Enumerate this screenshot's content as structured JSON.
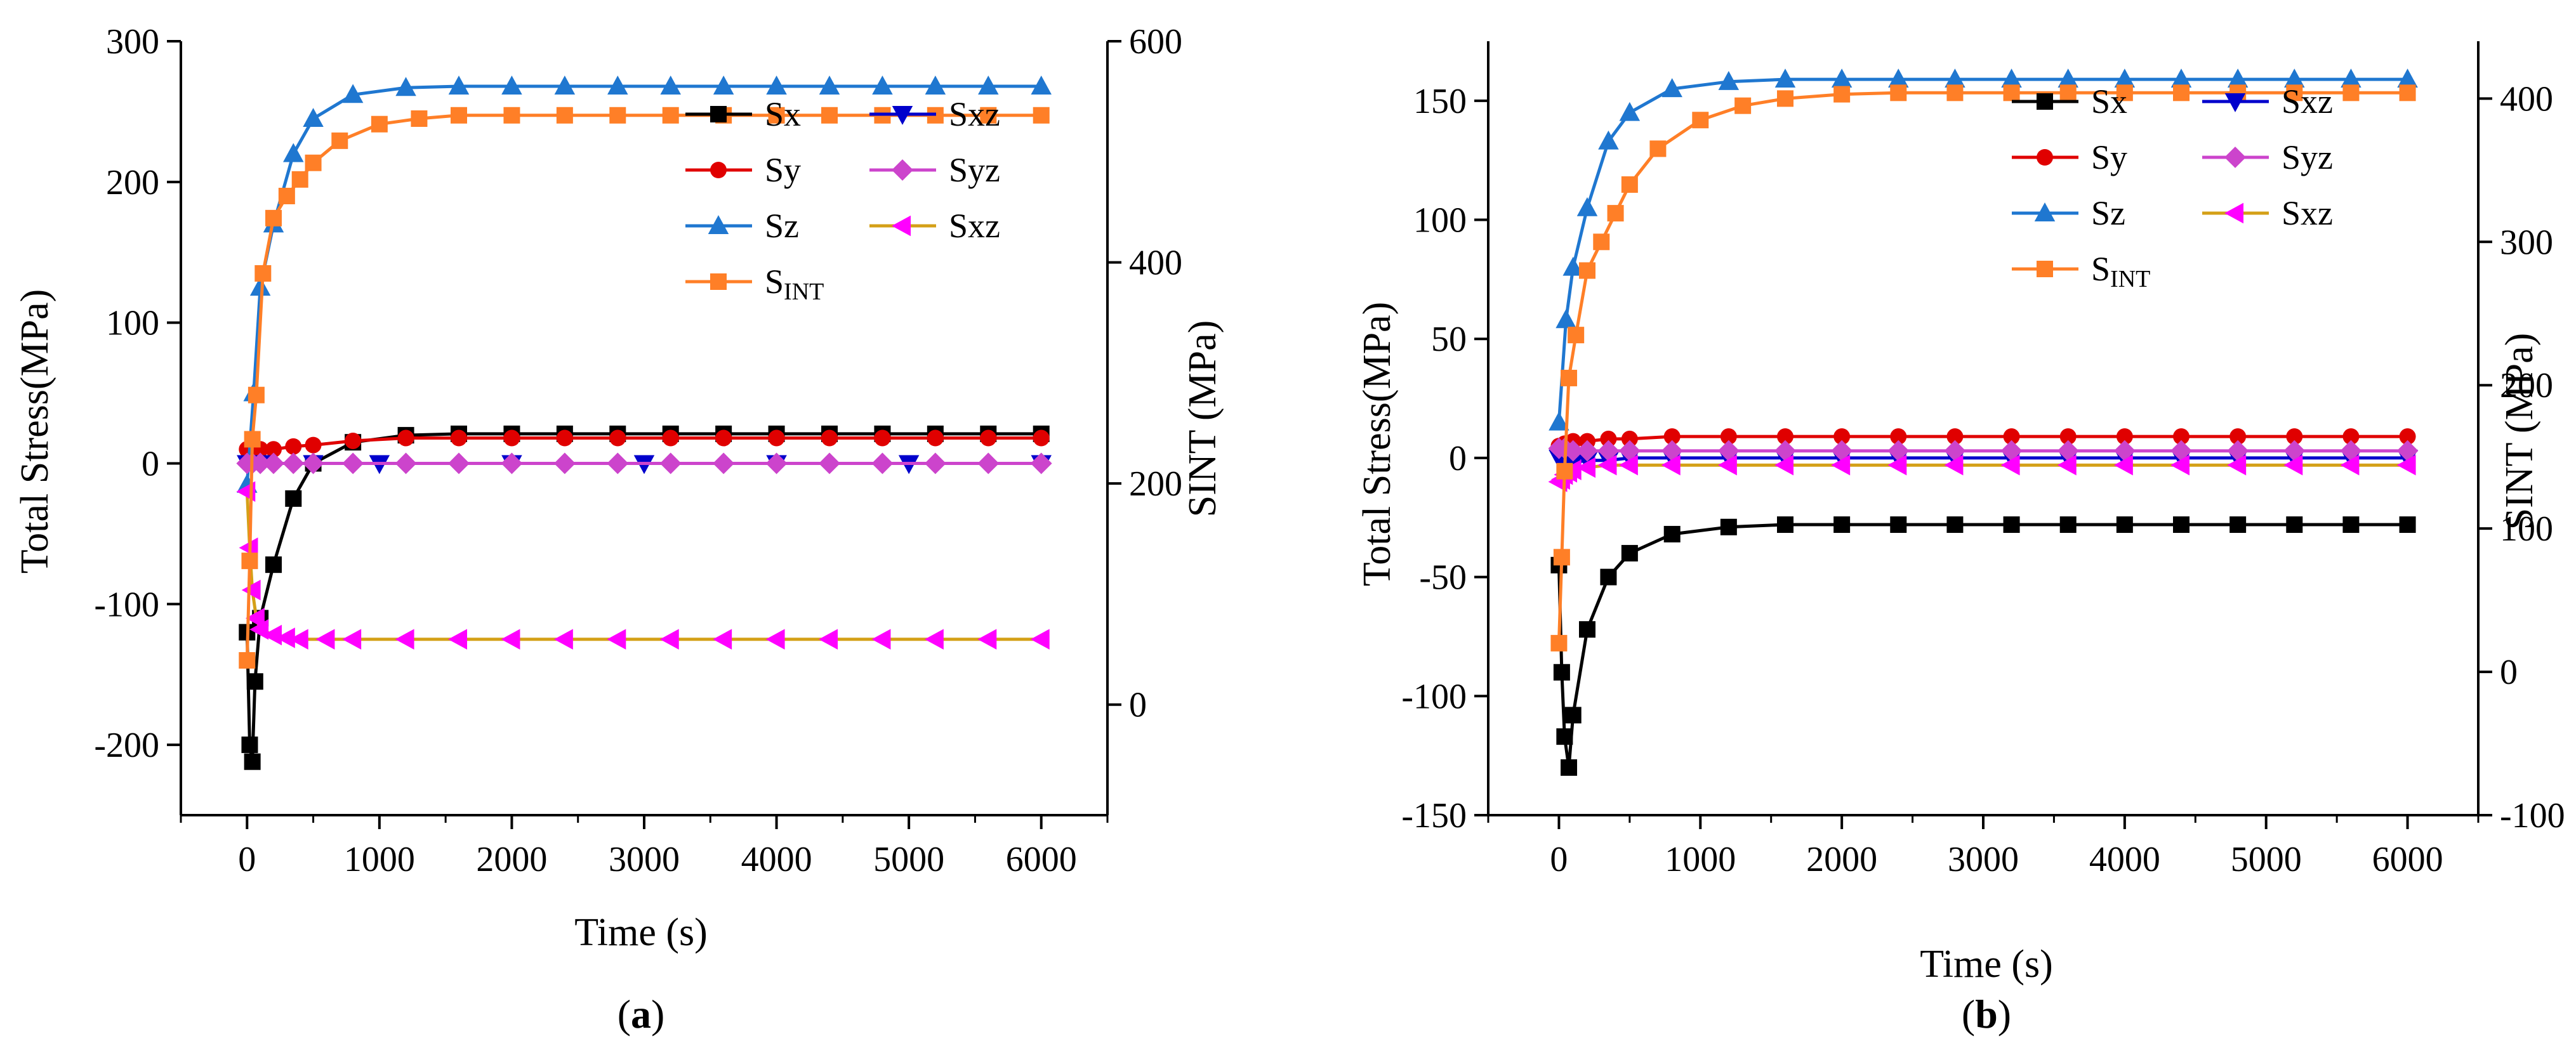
{
  "chart_data": [
    {
      "type": "line",
      "panel_label": "a",
      "xlabel": "Time (s)",
      "ylabel": "Total Stress(MPa)",
      "ylabel_right": "SINT (MPa)",
      "xlim": [
        -500,
        6500
      ],
      "ylim": [
        -250,
        300
      ],
      "ylim_right": [
        -100,
        600
      ],
      "xticks": [
        0,
        1000,
        2000,
        3000,
        4000,
        5000,
        6000
      ],
      "yticks": [
        -200,
        -100,
        0,
        100,
        200,
        300
      ],
      "yticks_right": [
        0,
        200,
        400,
        600
      ],
      "legend_position": "top-right",
      "series": [
        {
          "name": "Sx",
          "label_main": "Sx",
          "color": "#000000",
          "marker": "square",
          "axis": "left",
          "x": [
            0,
            20,
            40,
            60,
            100,
            200,
            350,
            500,
            800,
            1200,
            1600,
            2000,
            2400,
            2800,
            3200,
            3600,
            4000,
            4400,
            4800,
            5200,
            5600,
            6000
          ],
          "y": [
            -120,
            -200,
            -212,
            -155,
            -110,
            -72,
            -25,
            0,
            15,
            20,
            21,
            21,
            21,
            21,
            21,
            21,
            21,
            21,
            21,
            21,
            21,
            21
          ]
        },
        {
          "name": "Sy",
          "label_main": "Sy",
          "color": "#e00000",
          "marker": "circle",
          "axis": "left",
          "x": [
            0,
            40,
            100,
            200,
            350,
            500,
            800,
            1200,
            1600,
            2000,
            2400,
            2800,
            3200,
            3600,
            4000,
            4400,
            4800,
            5200,
            5600,
            6000
          ],
          "y": [
            10,
            8,
            10,
            10,
            12,
            13,
            16,
            18,
            18,
            18,
            18,
            18,
            18,
            18,
            18,
            18,
            18,
            18,
            18,
            18
          ]
        },
        {
          "name": "Sz",
          "label_main": "Sz",
          "color": "#1f77d0",
          "marker": "triangle-up",
          "axis": "left",
          "x": [
            0,
            50,
            100,
            200,
            350,
            500,
            800,
            1200,
            1600,
            2000,
            2400,
            2800,
            3200,
            3600,
            4000,
            4400,
            4800,
            5200,
            5600,
            6000
          ],
          "y": [
            -15,
            50,
            125,
            170,
            220,
            245,
            262,
            267,
            268,
            268,
            268,
            268,
            268,
            268,
            268,
            268,
            268,
            268,
            268,
            268
          ]
        },
        {
          "name": "Sxz",
          "label_main": "Sxz",
          "color": "#0000cc",
          "marker": "triangle-down",
          "axis": "left",
          "x": [
            0,
            100,
            500,
            1000,
            2000,
            3000,
            4000,
            5000,
            6000
          ],
          "y": [
            0,
            0,
            0,
            0,
            0,
            0,
            0,
            0,
            0
          ]
        },
        {
          "name": "Syz",
          "label_main": "Syz",
          "color": "#cc44cc",
          "marker": "diamond",
          "axis": "left",
          "x": [
            0,
            40,
            100,
            200,
            350,
            500,
            800,
            1200,
            1600,
            2000,
            2400,
            2800,
            3200,
            3600,
            4000,
            4400,
            4800,
            5200,
            5600,
            6000
          ],
          "y": [
            0,
            0,
            0,
            0,
            0,
            0,
            0,
            0,
            0,
            0,
            0,
            0,
            0,
            0,
            0,
            0,
            0,
            0,
            0,
            0
          ]
        },
        {
          "name": "Sxz (2)",
          "label_main": "Sxz",
          "color": "#ff00ff",
          "line_color": "#d4a017",
          "marker": "triangle-left",
          "axis": "left",
          "x": [
            0,
            20,
            40,
            70,
            100,
            200,
            300,
            400,
            600,
            800,
            1200,
            1600,
            2000,
            2400,
            2800,
            3200,
            3600,
            4000,
            4400,
            4800,
            5200,
            5600,
            6000
          ],
          "y": [
            -20,
            -60,
            -90,
            -110,
            -118,
            -122,
            -124,
            -125,
            -125,
            -125,
            -125,
            -125,
            -125,
            -125,
            -125,
            -125,
            -125,
            -125,
            -125,
            -125,
            -125,
            -125,
            -125
          ]
        },
        {
          "name": "SINT",
          "label_main": "S",
          "label_sub": "INT",
          "color": "#ff7f27",
          "marker": "square",
          "axis": "right",
          "x": [
            0,
            20,
            40,
            70,
            120,
            200,
            300,
            400,
            500,
            700,
            1000,
            1300,
            1600,
            2000,
            2400,
            2800,
            3200,
            3600,
            4000,
            4400,
            4800,
            5200,
            5600,
            6000
          ],
          "y": [
            40,
            130,
            240,
            280,
            390,
            440,
            460,
            475,
            490,
            510,
            525,
            530,
            533,
            533,
            533,
            533,
            533,
            533,
            533,
            533,
            533,
            533,
            533,
            533
          ]
        }
      ]
    },
    {
      "type": "line",
      "panel_label": "b",
      "xlabel": "Time (s)",
      "ylabel": "Total Stress(MPa)",
      "ylabel_right": "SINT (MPa)",
      "xlim": [
        -500,
        6500
      ],
      "ylim": [
        -150,
        175
      ],
      "ylim_right": [
        -100,
        440
      ],
      "xticks": [
        0,
        1000,
        2000,
        3000,
        4000,
        5000,
        6000
      ],
      "yticks": [
        -150,
        -100,
        -50,
        0,
        50,
        100,
        150
      ],
      "yticks_right": [
        -100,
        0,
        100,
        200,
        300,
        400
      ],
      "legend_position": "top-right",
      "series": [
        {
          "name": "Sx",
          "label_main": "Sx",
          "color": "#000000",
          "marker": "square",
          "axis": "left",
          "x": [
            0,
            20,
            40,
            70,
            100,
            200,
            350,
            500,
            800,
            1200,
            1600,
            2000,
            2400,
            2800,
            3200,
            3600,
            4000,
            4400,
            4800,
            5200,
            5600,
            6000
          ],
          "y": [
            -45,
            -90,
            -117,
            -130,
            -108,
            -72,
            -50,
            -40,
            -32,
            -29,
            -28,
            -28,
            -28,
            -28,
            -28,
            -28,
            -28,
            -28,
            -28,
            -28,
            -28,
            -28
          ]
        },
        {
          "name": "Sy",
          "label_main": "Sy",
          "color": "#e00000",
          "marker": "circle",
          "axis": "left",
          "x": [
            0,
            40,
            100,
            200,
            350,
            500,
            800,
            1200,
            1600,
            2000,
            2400,
            2800,
            3200,
            3600,
            4000,
            4400,
            4800,
            5200,
            5600,
            6000
          ],
          "y": [
            5,
            6,
            7,
            7,
            8,
            8,
            9,
            9,
            9,
            9,
            9,
            9,
            9,
            9,
            9,
            9,
            9,
            9,
            9,
            9
          ]
        },
        {
          "name": "Sz",
          "label_main": "Sz",
          "color": "#1f77d0",
          "marker": "triangle-up",
          "axis": "left",
          "x": [
            0,
            50,
            100,
            200,
            350,
            500,
            800,
            1200,
            1600,
            2000,
            2400,
            2800,
            3200,
            3600,
            4000,
            4400,
            4800,
            5200,
            5600,
            6000
          ],
          "y": [
            15,
            58,
            80,
            105,
            133,
            145,
            155,
            158,
            159,
            159,
            159,
            159,
            159,
            159,
            159,
            159,
            159,
            159,
            159,
            159
          ]
        },
        {
          "name": "Sxz",
          "label_main": "Sxz",
          "color": "#0000cc",
          "marker": "triangle-down",
          "axis": "left",
          "x": [
            0,
            40,
            100,
            200,
            350,
            500,
            800,
            1200,
            1600,
            2000,
            2400,
            2800,
            3200,
            3600,
            4000,
            4400,
            4800,
            5200,
            5600,
            6000
          ],
          "y": [
            0,
            -2,
            -2,
            -1,
            -1,
            0,
            0,
            0,
            0,
            0,
            0,
            0,
            0,
            0,
            0,
            0,
            0,
            0,
            0,
            0
          ]
        },
        {
          "name": "Syz",
          "label_main": "Syz",
          "color": "#cc44cc",
          "marker": "diamond",
          "axis": "left",
          "x": [
            0,
            40,
            100,
            200,
            350,
            500,
            800,
            1200,
            1600,
            2000,
            2400,
            2800,
            3200,
            3600,
            4000,
            4400,
            4800,
            5200,
            5600,
            6000
          ],
          "y": [
            4,
            4,
            3,
            3,
            3,
            3,
            3,
            3,
            3,
            3,
            3,
            3,
            3,
            3,
            3,
            3,
            3,
            3,
            3,
            3
          ]
        },
        {
          "name": "Sxz (2)",
          "label_main": "Sxz",
          "color": "#ff00ff",
          "line_color": "#d4a017",
          "marker": "triangle-left",
          "axis": "left",
          "x": [
            0,
            20,
            40,
            70,
            100,
            200,
            350,
            500,
            800,
            1200,
            1600,
            2000,
            2400,
            2800,
            3200,
            3600,
            4000,
            4400,
            4800,
            5200,
            5600,
            6000
          ],
          "y": [
            -10,
            -9,
            -7,
            -6,
            -5,
            -4,
            -3,
            -3,
            -3,
            -3,
            -3,
            -3,
            -3,
            -3,
            -3,
            -3,
            -3,
            -3,
            -3,
            -3,
            -3,
            -3
          ]
        },
        {
          "name": "SINT",
          "label_main": "S",
          "label_sub": "INT",
          "color": "#ff7f27",
          "marker": "square",
          "axis": "right",
          "x": [
            0,
            20,
            40,
            70,
            120,
            200,
            300,
            400,
            500,
            700,
            1000,
            1300,
            1600,
            2000,
            2400,
            2800,
            3200,
            3600,
            4000,
            4400,
            4800,
            5200,
            5600,
            6000
          ],
          "y": [
            20,
            80,
            140,
            205,
            235,
            280,
            300,
            320,
            340,
            365,
            385,
            395,
            400,
            403,
            404,
            404,
            404,
            404,
            404,
            404,
            404,
            404,
            404,
            404
          ]
        }
      ]
    }
  ]
}
